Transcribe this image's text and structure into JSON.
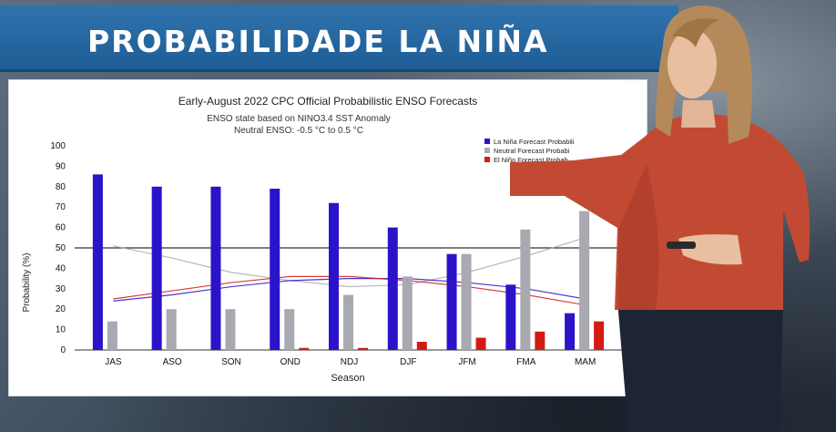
{
  "banner": {
    "title": "PROBABILIDADE LA NIÑA"
  },
  "colors": {
    "banner": "#2a6aa5",
    "la_nina": "#2b13c9",
    "neutral": "#a9a9b1",
    "el_nino": "#d21b14",
    "presenter_shirt": "#c24a33",
    "presenter_hair": "#b58a5a",
    "presenter_skin": "#e9bfa1",
    "presenter_pants": "#1d2433"
  },
  "chart_data": {
    "type": "bar",
    "title": "Early-August 2022 CPC Official Probabilistic ENSO Forecasts",
    "subtitle_lines": [
      "ENSO state based on NINO3.4 SST Anomaly",
      "Neutral ENSO: -0.5 °C to 0.5 °C"
    ],
    "xlabel": "Season",
    "ylabel": "Probability (%)",
    "ylim": [
      0,
      100
    ],
    "yticks": [
      0,
      10,
      20,
      30,
      40,
      50,
      60,
      70,
      80,
      90,
      100
    ],
    "reference_line": 50,
    "categories": [
      "JAS",
      "ASO",
      "SON",
      "OND",
      "NDJ",
      "DJF",
      "JFM",
      "FMA",
      "MAM"
    ],
    "series": [
      {
        "name": "La Niña Forecast Probability",
        "legend_text": "La Niña Forecast Probabili",
        "color": "#2b13c9",
        "values": [
          86,
          80,
          80,
          79,
          72,
          60,
          47,
          32,
          18
        ]
      },
      {
        "name": "Neutral Forecast Probability",
        "legend_text": "Neutral Forecast Probabi",
        "color": "#a9a9b1",
        "values": [
          14,
          20,
          20,
          20,
          27,
          36,
          47,
          59,
          68
        ]
      },
      {
        "name": "El Niño Forecast Probability",
        "legend_text": "El Niño Forecast Probab",
        "color": "#d21b14",
        "values": [
          0,
          0,
          0,
          1,
          1,
          4,
          6,
          9,
          14
        ]
      }
    ],
    "lines": [
      {
        "color": "#a9a9b1",
        "values": [
          51,
          45,
          38,
          34,
          31,
          32,
          38,
          46,
          55
        ]
      },
      {
        "color": "#2b13c9",
        "values": [
          24,
          27,
          31,
          34,
          35,
          35,
          33,
          30,
          25
        ]
      },
      {
        "color": "#d21b14",
        "values": [
          25,
          29,
          33,
          36,
          36,
          34,
          31,
          27,
          22
        ]
      }
    ],
    "legend_position": "top-right"
  }
}
